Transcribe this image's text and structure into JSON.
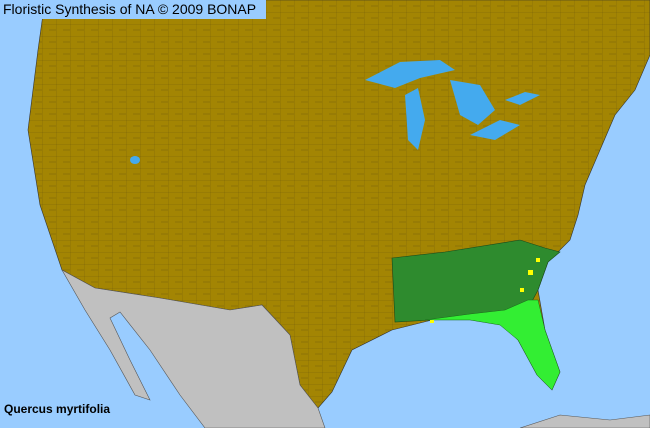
{
  "header": {
    "title": "Floristic Synthesis of NA © 2009 BONAP"
  },
  "species": {
    "name": "Quercus myrtifolia"
  },
  "colors": {
    "ocean": "#99ccff",
    "absent_land": "#a38503",
    "outside_range": "#c0c0c0",
    "present_state": "#2e8b2e",
    "present_county": "#33ee33",
    "rare_county": "#ffff00",
    "county_lines": "#5a4a10"
  }
}
